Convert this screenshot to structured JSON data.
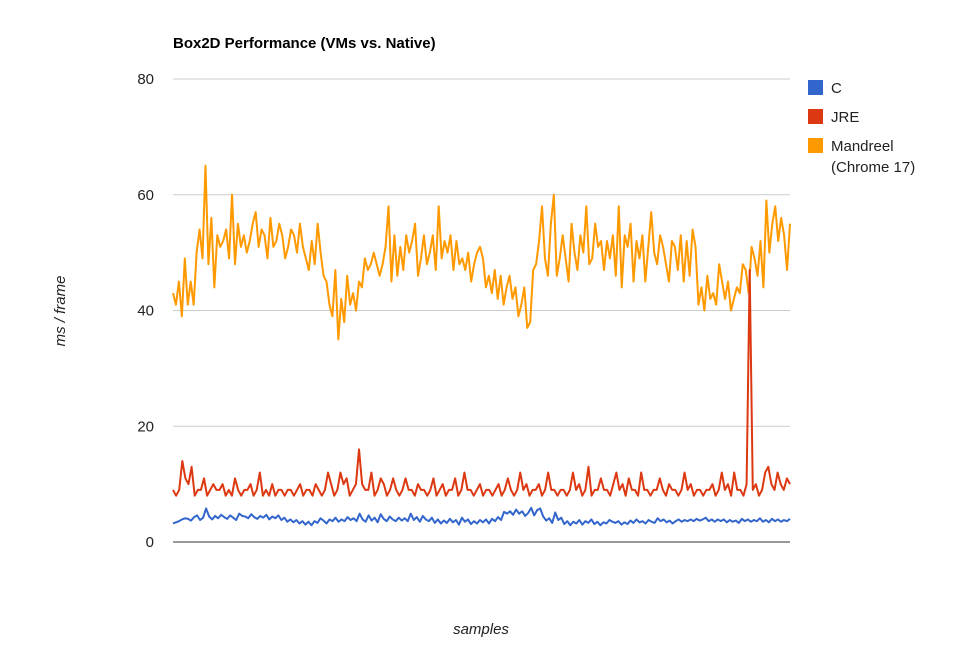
{
  "chart_data": {
    "type": "line",
    "title": "Box2D Performance (VMs vs. Native)",
    "xlabel": "samples",
    "ylabel": "ms / frame",
    "ylim": [
      0,
      80
    ],
    "yticks": [
      0,
      20,
      40,
      60,
      80
    ],
    "grid": true,
    "legend_position": "right",
    "series": [
      {
        "name": "C",
        "color": "#3366cc",
        "values": [
          3.2,
          3.4,
          3.6,
          3.9,
          4.1,
          4.0,
          3.7,
          4.3,
          4.6,
          3.8,
          4.2,
          5.8,
          4.4,
          3.9,
          4.5,
          4.1,
          4.7,
          4.3,
          4.0,
          4.6,
          4.2,
          3.8,
          4.9,
          4.5,
          4.4,
          4.1,
          4.8,
          4.3,
          4.0,
          4.5,
          4.2,
          4.7,
          3.9,
          4.4,
          4.1,
          4.6,
          3.8,
          4.2,
          3.5,
          3.9,
          3.4,
          3.8,
          3.2,
          3.6,
          3.0,
          3.5,
          2.9,
          3.6,
          3.3,
          4.1,
          3.7,
          3.2,
          3.9,
          3.6,
          4.2,
          3.5,
          3.9,
          3.6,
          4.3,
          3.8,
          4.1,
          3.6,
          4.9,
          3.9,
          3.5,
          4.6,
          3.7,
          4.2,
          3.4,
          4.8,
          4.0,
          3.6,
          4.4,
          3.9,
          3.6,
          4.2,
          3.7,
          4.1,
          3.6,
          4.9,
          3.8,
          4.3,
          3.5,
          4.5,
          3.9,
          3.6,
          4.2,
          3.3,
          3.9,
          3.2,
          3.7,
          3.3,
          4.0,
          3.4,
          3.8,
          3.0,
          4.2,
          3.5,
          3.9,
          3.1,
          3.6,
          3.2,
          3.8,
          3.4,
          3.9,
          3.2,
          4.0,
          3.6,
          4.3,
          3.8,
          5.2,
          4.9,
          5.3,
          4.7,
          5.6,
          4.9,
          5.3,
          4.5,
          5.0,
          5.9,
          4.6,
          5.5,
          5.8,
          4.4,
          3.7,
          4.1,
          3.3,
          5.1,
          3.8,
          4.2,
          3.1,
          3.6,
          2.9,
          3.5,
          3.2,
          3.8,
          3.0,
          3.6,
          3.3,
          3.9,
          3.1,
          3.5,
          2.9,
          3.4,
          3.2,
          3.8,
          3.5,
          3.3,
          3.6,
          3.0,
          3.4,
          3.1,
          3.7,
          3.3,
          3.9,
          3.4,
          3.6,
          3.2,
          3.8,
          3.5,
          3.3,
          4.1,
          3.6,
          3.9,
          3.4,
          3.7,
          3.2,
          3.6,
          3.9,
          3.5,
          3.8,
          3.6,
          3.9,
          3.6,
          4.0,
          3.7,
          3.9,
          4.2,
          3.6,
          3.9,
          3.5,
          3.9,
          3.6,
          3.9,
          3.4,
          3.8,
          3.5,
          3.7,
          3.3,
          4.0,
          3.6,
          3.9,
          3.5,
          3.8,
          3.6,
          4.1,
          3.5,
          3.8,
          3.4,
          4.0,
          3.6,
          3.9,
          3.5,
          3.8,
          3.6,
          4.0
        ]
      },
      {
        "name": "JRE",
        "color": "#dc3912",
        "values": [
          9,
          8,
          9,
          14,
          11,
          10,
          13,
          8,
          9,
          9,
          11,
          8,
          9,
          10,
          9,
          9,
          10,
          8,
          9,
          8,
          11,
          9,
          8,
          9,
          9,
          10,
          8,
          9,
          12,
          8,
          9,
          8,
          10,
          8,
          9,
          9,
          8,
          9,
          9,
          8,
          9,
          10,
          8,
          9,
          9,
          8,
          10,
          9,
          8,
          9,
          12,
          10,
          8,
          9,
          12,
          10,
          11,
          8,
          9,
          10,
          16,
          10,
          9,
          9,
          12,
          8,
          9,
          11,
          10,
          8,
          9,
          11,
          9,
          8,
          9,
          11,
          9,
          9,
          8,
          10,
          9,
          9,
          8,
          9,
          11,
          8,
          9,
          10,
          8,
          9,
          9,
          11,
          8,
          9,
          12,
          9,
          9,
          8,
          9,
          10,
          8,
          9,
          9,
          8,
          9,
          10,
          8,
          9,
          11,
          9,
          8,
          9,
          12,
          9,
          10,
          8,
          9,
          9,
          10,
          8,
          9,
          12,
          9,
          9,
          8,
          9,
          9,
          8,
          9,
          12,
          9,
          10,
          8,
          9,
          13,
          8,
          9,
          9,
          11,
          9,
          9,
          8,
          10,
          12,
          9,
          10,
          8,
          11,
          9,
          9,
          8,
          12,
          9,
          9,
          8,
          9,
          9,
          11,
          9,
          8,
          10,
          9,
          9,
          8,
          9,
          12,
          9,
          10,
          8,
          9,
          9,
          8,
          9,
          9,
          10,
          8,
          9,
          12,
          9,
          10,
          8,
          12,
          9,
          9,
          8,
          10,
          47,
          9,
          10,
          8,
          9,
          12,
          13,
          10,
          9,
          12,
          10,
          9,
          11,
          10
        ]
      },
      {
        "name": "Mandreel (Chrome 17)",
        "color": "#ff9900",
        "values": [
          43,
          41,
          45,
          39,
          49,
          41,
          45,
          41,
          50,
          54,
          49,
          65,
          48,
          56,
          44,
          53,
          51,
          52,
          54,
          49,
          60,
          48,
          55,
          51,
          53,
          50,
          52,
          55,
          57,
          51,
          54,
          53,
          49,
          56,
          51,
          52,
          55,
          53,
          49,
          51,
          54,
          53,
          50,
          55,
          51,
          49,
          47,
          52,
          48,
          55,
          50,
          46,
          45,
          41,
          39,
          47,
          35,
          42,
          38,
          46,
          41,
          43,
          40,
          45,
          44,
          49,
          47,
          48,
          50,
          48,
          46,
          48,
          51,
          58,
          45,
          53,
          46,
          51,
          47,
          53,
          50,
          52,
          55,
          46,
          49,
          53,
          48,
          50,
          53,
          47,
          58,
          49,
          52,
          50,
          53,
          47,
          52,
          48,
          49,
          47,
          50,
          45,
          48,
          50,
          51,
          49,
          44,
          46,
          43,
          47,
          42,
          46,
          41,
          44,
          46,
          42,
          44,
          39,
          41,
          44,
          37,
          38,
          47,
          48,
          52,
          58,
          49,
          46,
          55,
          60,
          46,
          49,
          53,
          49,
          45,
          55,
          50,
          47,
          53,
          50,
          58,
          48,
          49,
          55,
          51,
          52,
          47,
          52,
          49,
          53,
          46,
          58,
          44,
          53,
          51,
          55,
          45,
          52,
          49,
          53,
          45,
          51,
          57,
          50,
          48,
          53,
          51,
          48,
          45,
          52,
          51,
          47,
          53,
          45,
          52,
          46,
          54,
          51,
          41,
          44,
          40,
          46,
          42,
          43,
          41,
          48,
          45,
          42,
          45,
          40,
          42,
          44,
          43,
          48,
          47,
          43,
          51,
          49,
          46,
          52,
          44,
          59,
          50,
          55,
          58,
          52,
          56,
          53,
          47,
          55
        ]
      }
    ]
  }
}
